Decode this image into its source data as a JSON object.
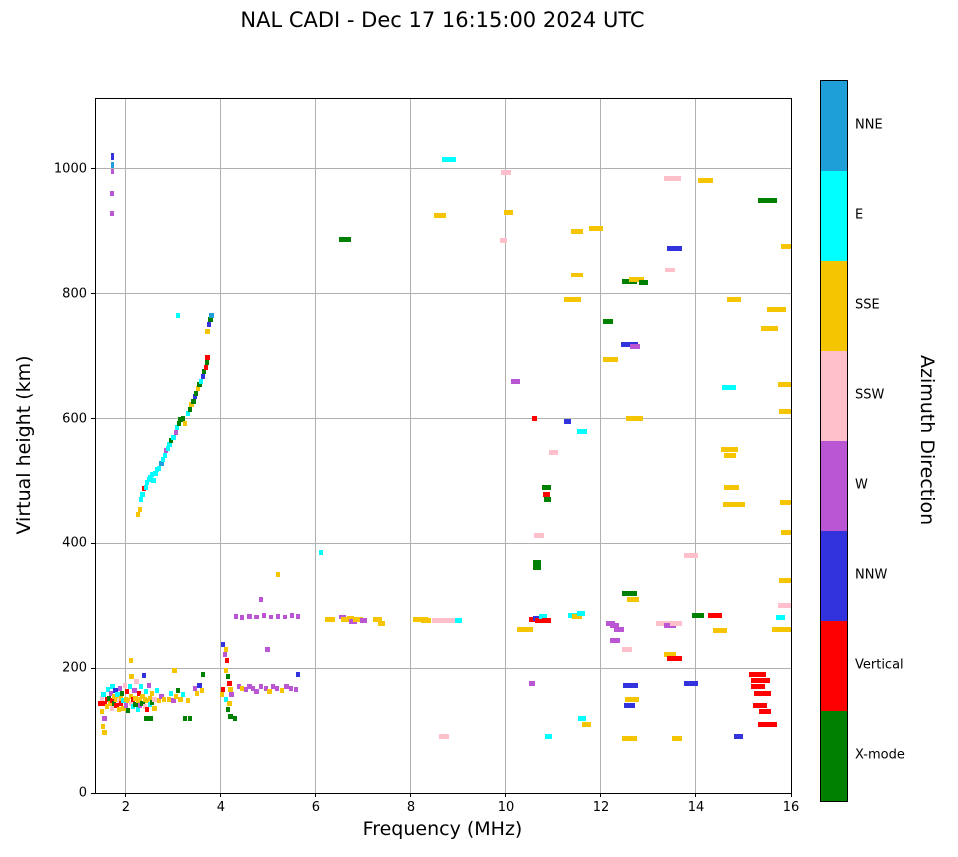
{
  "chart_data": {
    "type": "scatter",
    "title": "NAL CADI - Dec 17 16:15:00 2024 UTC",
    "xlabel": "Frequency (MHz)",
    "ylabel": "Virtual height (km)",
    "xlim": [
      1.37,
      16
    ],
    "ylim": [
      0,
      1112
    ],
    "xticks": [
      2,
      4,
      6,
      8,
      10,
      12,
      14,
      16
    ],
    "yticks": [
      0,
      200,
      400,
      600,
      800,
      1000
    ],
    "grid": true,
    "grid_color": "#b0b0b0",
    "point_default_w_mhz": 0.09,
    "point_default_h_km": 8,
    "colorbar": {
      "label": "Azimuth Direction",
      "categories": [
        {
          "label": "NNE",
          "color": "#1e9fd8"
        },
        {
          "label": "E",
          "color": "#00ffff"
        },
        {
          "label": "SSE",
          "color": "#f4c500"
        },
        {
          "label": "SSW",
          "color": "#ffc0cb"
        },
        {
          "label": "W",
          "color": "#ba55d3"
        },
        {
          "label": "NNW",
          "color": "#3333dd"
        },
        {
          "label": "Vertical",
          "color": "#ff0000"
        },
        {
          "label": "X-mode",
          "color": "#008000"
        }
      ]
    },
    "points": [
      [
        1.45,
        143,
        6
      ],
      [
        1.5,
        143,
        6
      ],
      [
        1.56,
        143,
        6
      ],
      [
        1.5,
        151,
        3
      ],
      [
        1.53,
        158,
        1
      ],
      [
        1.5,
        131,
        2
      ],
      [
        1.55,
        120,
        4
      ],
      [
        1.52,
        107,
        2
      ],
      [
        1.55,
        97,
        2
      ],
      [
        1.6,
        150,
        6
      ],
      [
        1.6,
        139,
        2
      ],
      [
        1.62,
        166,
        1
      ],
      [
        1.65,
        152,
        7
      ],
      [
        1.66,
        143,
        2
      ],
      [
        1.68,
        160,
        4
      ],
      [
        1.7,
        148,
        6
      ],
      [
        1.7,
        136,
        3
      ],
      [
        1.72,
        170,
        1
      ],
      [
        1.75,
        155,
        2
      ],
      [
        1.75,
        143,
        7
      ],
      [
        1.78,
        165,
        5
      ],
      [
        1.8,
        150,
        2
      ],
      [
        1.8,
        140,
        6
      ],
      [
        1.82,
        158,
        1
      ],
      [
        1.85,
        148,
        3
      ],
      [
        1.85,
        133,
        2
      ],
      [
        1.88,
        168,
        4
      ],
      [
        1.9,
        152,
        2
      ],
      [
        1.9,
        143,
        6
      ],
      [
        1.92,
        160,
        7
      ],
      [
        1.95,
        148,
        1
      ],
      [
        1.95,
        135,
        2
      ],
      [
        1.98,
        172,
        3
      ],
      [
        2.0,
        150,
        2
      ],
      [
        2.0,
        140,
        4
      ],
      [
        2.02,
        162,
        6
      ],
      [
        2.05,
        148,
        2
      ],
      [
        2.05,
        132,
        7
      ],
      [
        2.08,
        170,
        1
      ],
      [
        2.1,
        155,
        2
      ],
      [
        2.1,
        143,
        3
      ],
      [
        2.12,
        186,
        2
      ],
      [
        2.1,
        212,
        2
      ],
      [
        2.15,
        150,
        6
      ],
      [
        2.15,
        138,
        1
      ],
      [
        2.18,
        165,
        4
      ],
      [
        2.2,
        152,
        2
      ],
      [
        2.2,
        142,
        7
      ],
      [
        2.22,
        178,
        3
      ],
      [
        2.25,
        148,
        2
      ],
      [
        2.25,
        133,
        1
      ],
      [
        2.28,
        160,
        6
      ],
      [
        2.3,
        150,
        2
      ],
      [
        2.3,
        140,
        4
      ],
      [
        2.32,
        170,
        1
      ],
      [
        2.35,
        155,
        2
      ],
      [
        2.35,
        143,
        7
      ],
      [
        2.38,
        188,
        5
      ],
      [
        2.4,
        150,
        2
      ],
      [
        2.4,
        138,
        3
      ],
      [
        2.42,
        120,
        7
      ],
      [
        2.42,
        163,
        1
      ],
      [
        2.45,
        148,
        2
      ],
      [
        2.45,
        133,
        6
      ],
      [
        2.48,
        172,
        4
      ],
      [
        2.5,
        152,
        2
      ],
      [
        2.5,
        142,
        1
      ],
      [
        2.52,
        120,
        7
      ],
      [
        2.55,
        160,
        2
      ],
      [
        2.55,
        145,
        7
      ],
      [
        2.6,
        150,
        3
      ],
      [
        2.6,
        135,
        2
      ],
      [
        2.65,
        165,
        1
      ],
      [
        2.7,
        148,
        2
      ],
      [
        2.75,
        155,
        4
      ],
      [
        2.8,
        150,
        2
      ],
      [
        2.9,
        150,
        2
      ],
      [
        2.95,
        160,
        1
      ],
      [
        3.0,
        148,
        4
      ],
      [
        3.02,
        196,
        2
      ],
      [
        3.05,
        155,
        2
      ],
      [
        3.1,
        165,
        7
      ],
      [
        3.15,
        150,
        2
      ],
      [
        3.2,
        158,
        1
      ],
      [
        3.25,
        120,
        7
      ],
      [
        3.3,
        148,
        2
      ],
      [
        3.35,
        120,
        7
      ],
      [
        3.45,
        168,
        4
      ],
      [
        3.5,
        160,
        2
      ],
      [
        3.55,
        172,
        5
      ],
      [
        3.6,
        165,
        2
      ],
      [
        3.62,
        190,
        7
      ],
      [
        4.05,
        238,
        5
      ],
      [
        4.1,
        230,
        2
      ],
      [
        4.08,
        222,
        4
      ],
      [
        4.12,
        213,
        6
      ],
      [
        4.1,
        196,
        2
      ],
      [
        4.15,
        186,
        7
      ],
      [
        4.18,
        176,
        6
      ],
      [
        4.2,
        166,
        2
      ],
      [
        4.22,
        158,
        4
      ],
      [
        4.1,
        150,
        1
      ],
      [
        4.18,
        143,
        2
      ],
      [
        4.15,
        133,
        7
      ],
      [
        4.2,
        122,
        7
      ],
      [
        4.3,
        120,
        7
      ],
      [
        4.05,
        166,
        6
      ],
      [
        4.02,
        158,
        2
      ],
      [
        4.38,
        170,
        4
      ],
      [
        4.45,
        168,
        2
      ],
      [
        4.52,
        166,
        4
      ],
      [
        4.6,
        170,
        4
      ],
      [
        4.68,
        168,
        4
      ],
      [
        4.75,
        163,
        4
      ],
      [
        4.85,
        170,
        4
      ],
      [
        4.95,
        168,
        4
      ],
      [
        5.02,
        163,
        2
      ],
      [
        5.1,
        170,
        4
      ],
      [
        5.18,
        168,
        4
      ],
      [
        5.28,
        165,
        2
      ],
      [
        5.38,
        170,
        4
      ],
      [
        5.48,
        168,
        4
      ],
      [
        5.58,
        166,
        4
      ],
      [
        5.62,
        190,
        5
      ],
      [
        4.98,
        230,
        4
      ],
      [
        4.85,
        310,
        4
      ],
      [
        5.2,
        350,
        2
      ],
      [
        4.32,
        283,
        4
      ],
      [
        4.45,
        281,
        4
      ],
      [
        4.6,
        283,
        4
      ],
      [
        4.75,
        282,
        4
      ],
      [
        4.9,
        284,
        4
      ],
      [
        5.05,
        282,
        4
      ],
      [
        5.2,
        283,
        4
      ],
      [
        5.35,
        282,
        4
      ],
      [
        5.5,
        284,
        4
      ],
      [
        5.62,
        283,
        4
      ],
      [
        2.25,
        447,
        2
      ],
      [
        2.3,
        455,
        2
      ],
      [
        2.32,
        470,
        1
      ],
      [
        2.35,
        478,
        1
      ],
      [
        2.38,
        488,
        6
      ],
      [
        2.42,
        490,
        1
      ],
      [
        2.45,
        497,
        1
      ],
      [
        2.48,
        503,
        1
      ],
      [
        2.52,
        506,
        1
      ],
      [
        2.55,
        510,
        1
      ],
      [
        2.58,
        500,
        1
      ],
      [
        2.62,
        512,
        1
      ],
      [
        2.65,
        518,
        1
      ],
      [
        2.7,
        520,
        1
      ],
      [
        2.75,
        528,
        0
      ],
      [
        2.78,
        535,
        1
      ],
      [
        2.82,
        540,
        1
      ],
      [
        2.85,
        548,
        4
      ],
      [
        2.88,
        552,
        1
      ],
      [
        2.92,
        558,
        1
      ],
      [
        2.95,
        565,
        7
      ],
      [
        3.0,
        570,
        1
      ],
      [
        3.05,
        578,
        4
      ],
      [
        3.08,
        585,
        1
      ],
      [
        3.12,
        592,
        7
      ],
      [
        3.15,
        598,
        7
      ],
      [
        3.2,
        600,
        7
      ],
      [
        3.25,
        592,
        2
      ],
      [
        3.3,
        608,
        1
      ],
      [
        3.35,
        615,
        7
      ],
      [
        3.38,
        622,
        2
      ],
      [
        3.42,
        628,
        7
      ],
      [
        3.45,
        635,
        5
      ],
      [
        3.48,
        640,
        7
      ],
      [
        3.52,
        648,
        2
      ],
      [
        3.55,
        655,
        7
      ],
      [
        3.58,
        660,
        1
      ],
      [
        3.62,
        668,
        5
      ],
      [
        3.65,
        675,
        7
      ],
      [
        3.68,
        682,
        6
      ],
      [
        3.7,
        690,
        7
      ],
      [
        3.72,
        698,
        6
      ],
      [
        3.72,
        740,
        2
      ],
      [
        3.75,
        750,
        5
      ],
      [
        3.78,
        758,
        7
      ],
      [
        3.8,
        765,
        0
      ],
      [
        3.1,
        765,
        1
      ],
      [
        6.3,
        278,
        2,
        0.2
      ],
      [
        6.55,
        282,
        4,
        0.15
      ],
      [
        6.62,
        278,
        2,
        0.2
      ],
      [
        6.72,
        280,
        2,
        0.15
      ],
      [
        6.78,
        275,
        4,
        0.15
      ],
      [
        6.88,
        278,
        2,
        0.2
      ],
      [
        7.0,
        277,
        4,
        0.15
      ],
      [
        7.3,
        278,
        2,
        0.2
      ],
      [
        7.38,
        272,
        2,
        0.15
      ],
      [
        8.2,
        278,
        2,
        0.3
      ],
      [
        8.32,
        277,
        2,
        0.2
      ],
      [
        8.6,
        277,
        3,
        0.3
      ],
      [
        8.75,
        277,
        3,
        0.25
      ],
      [
        8.9,
        277,
        3,
        0.25
      ],
      [
        9.0,
        276,
        1,
        0.15
      ],
      [
        10.4,
        262,
        2,
        0.35
      ],
      [
        10.55,
        278,
        6,
        0.15
      ],
      [
        10.65,
        280,
        5,
        0.15
      ],
      [
        10.72,
        277,
        6,
        0.2
      ],
      [
        10.78,
        283,
        1,
        0.15
      ],
      [
        10.85,
        277,
        6,
        0.2
      ],
      [
        11.4,
        285,
        1,
        0.2
      ],
      [
        11.5,
        283,
        2,
        0.2
      ],
      [
        11.58,
        287,
        1,
        0.15
      ],
      [
        12.2,
        272,
        4,
        0.2
      ],
      [
        12.28,
        268,
        4,
        0.2
      ],
      [
        12.38,
        262,
        4,
        0.2
      ],
      [
        13.3,
        272,
        3,
        0.3
      ],
      [
        13.45,
        268,
        4,
        0.25
      ],
      [
        13.58,
        272,
        3,
        0.25
      ],
      [
        14.05,
        285,
        7,
        0.25
      ],
      [
        14.4,
        285,
        6,
        0.3
      ],
      [
        14.5,
        260,
        2,
        0.3
      ],
      [
        15.78,
        281,
        1,
        0.2
      ],
      [
        15.8,
        262,
        2,
        0.4
      ],
      [
        15.88,
        300,
        3,
        0.3
      ],
      [
        1.72,
        1020,
        5,
        0.06,
        12
      ],
      [
        1.72,
        1006,
        0,
        0.06,
        10
      ],
      [
        1.72,
        996,
        4,
        0.06,
        8
      ],
      [
        1.7,
        960,
        4
      ],
      [
        1.7,
        928,
        4
      ],
      [
        8.8,
        1015,
        1,
        0.3
      ],
      [
        8.62,
        925,
        2,
        0.25
      ],
      [
        10.0,
        995,
        3,
        0.2
      ],
      [
        10.05,
        930,
        2,
        0.2
      ],
      [
        9.95,
        885,
        3,
        0.15
      ],
      [
        6.62,
        887,
        7,
        0.25
      ],
      [
        11.5,
        900,
        2,
        0.25
      ],
      [
        11.9,
        905,
        2,
        0.3
      ],
      [
        13.5,
        985,
        3,
        0.35
      ],
      [
        14.2,
        982,
        2,
        0.3
      ],
      [
        15.5,
        950,
        7,
        0.4
      ],
      [
        15.95,
        875,
        2,
        0.3
      ],
      [
        11.5,
        830,
        2,
        0.25
      ],
      [
        11.4,
        790,
        2,
        0.35
      ],
      [
        12.6,
        820,
        7,
        0.3
      ],
      [
        12.75,
        822,
        2,
        0.3
      ],
      [
        12.9,
        818,
        7,
        0.2
      ],
      [
        13.45,
        838,
        3,
        0.2
      ],
      [
        13.55,
        872,
        5,
        0.3
      ],
      [
        12.15,
        755,
        7,
        0.2
      ],
      [
        12.6,
        718,
        5,
        0.35
      ],
      [
        12.72,
        715,
        4,
        0.2
      ],
      [
        12.2,
        695,
        2,
        0.3
      ],
      [
        14.7,
        650,
        1,
        0.3
      ],
      [
        15.9,
        655,
        2,
        0.35
      ],
      [
        15.95,
        612,
        2,
        0.4
      ],
      [
        15.55,
        745,
        2,
        0.35
      ],
      [
        15.7,
        775,
        2,
        0.4
      ],
      [
        14.8,
        790,
        2,
        0.3
      ],
      [
        14.7,
        550,
        2,
        0.35
      ],
      [
        14.72,
        540,
        2,
        0.25
      ],
      [
        14.75,
        490,
        2,
        0.3
      ],
      [
        14.8,
        462,
        2,
        0.45
      ],
      [
        15.92,
        465,
        2,
        0.3
      ],
      [
        15.95,
        418,
        2,
        0.3
      ],
      [
        15.9,
        340,
        2,
        0.3
      ],
      [
        12.7,
        600,
        2,
        0.35
      ],
      [
        10.6,
        600,
        6,
        0.12
      ],
      [
        11.3,
        595,
        5,
        0.15
      ],
      [
        11.6,
        580,
        1,
        0.2
      ],
      [
        11.0,
        545,
        3,
        0.2
      ],
      [
        10.85,
        490,
        7,
        0.2
      ],
      [
        10.85,
        478,
        6,
        0.15
      ],
      [
        10.88,
        470,
        7,
        0.15
      ],
      [
        10.7,
        412,
        3,
        0.2
      ],
      [
        10.65,
        365,
        7,
        0.18,
        16
      ],
      [
        13.9,
        380,
        3,
        0.3
      ],
      [
        6.1,
        385,
        1
      ],
      [
        10.2,
        660,
        4,
        0.2
      ],
      [
        12.6,
        320,
        7,
        0.3
      ],
      [
        12.68,
        310,
        2,
        0.25
      ],
      [
        8.7,
        90,
        3,
        0.2
      ],
      [
        10.9,
        90,
        1,
        0.15
      ],
      [
        12.6,
        88,
        2,
        0.3
      ],
      [
        13.6,
        88,
        2,
        0.2
      ],
      [
        14.9,
        90,
        5,
        0.2
      ],
      [
        11.6,
        120,
        1,
        0.15
      ],
      [
        11.7,
        110,
        2,
        0.2
      ],
      [
        12.65,
        150,
        2,
        0.3
      ],
      [
        12.6,
        140,
        5,
        0.25
      ],
      [
        12.62,
        172,
        5,
        0.3
      ],
      [
        13.9,
        175,
        5,
        0.3
      ],
      [
        10.55,
        175,
        4,
        0.12
      ],
      [
        15.3,
        190,
        6,
        0.35
      ],
      [
        15.35,
        180,
        6,
        0.4
      ],
      [
        15.3,
        170,
        6,
        0.3
      ],
      [
        15.4,
        160,
        6,
        0.35
      ],
      [
        15.35,
        140,
        6,
        0.3
      ],
      [
        15.45,
        130,
        6,
        0.25
      ],
      [
        15.5,
        110,
        6,
        0.4
      ],
      [
        13.45,
        222,
        2,
        0.25
      ],
      [
        13.55,
        215,
        6,
        0.3
      ],
      [
        12.3,
        245,
        4,
        0.2
      ],
      [
        12.55,
        230,
        3,
        0.2
      ]
    ]
  }
}
